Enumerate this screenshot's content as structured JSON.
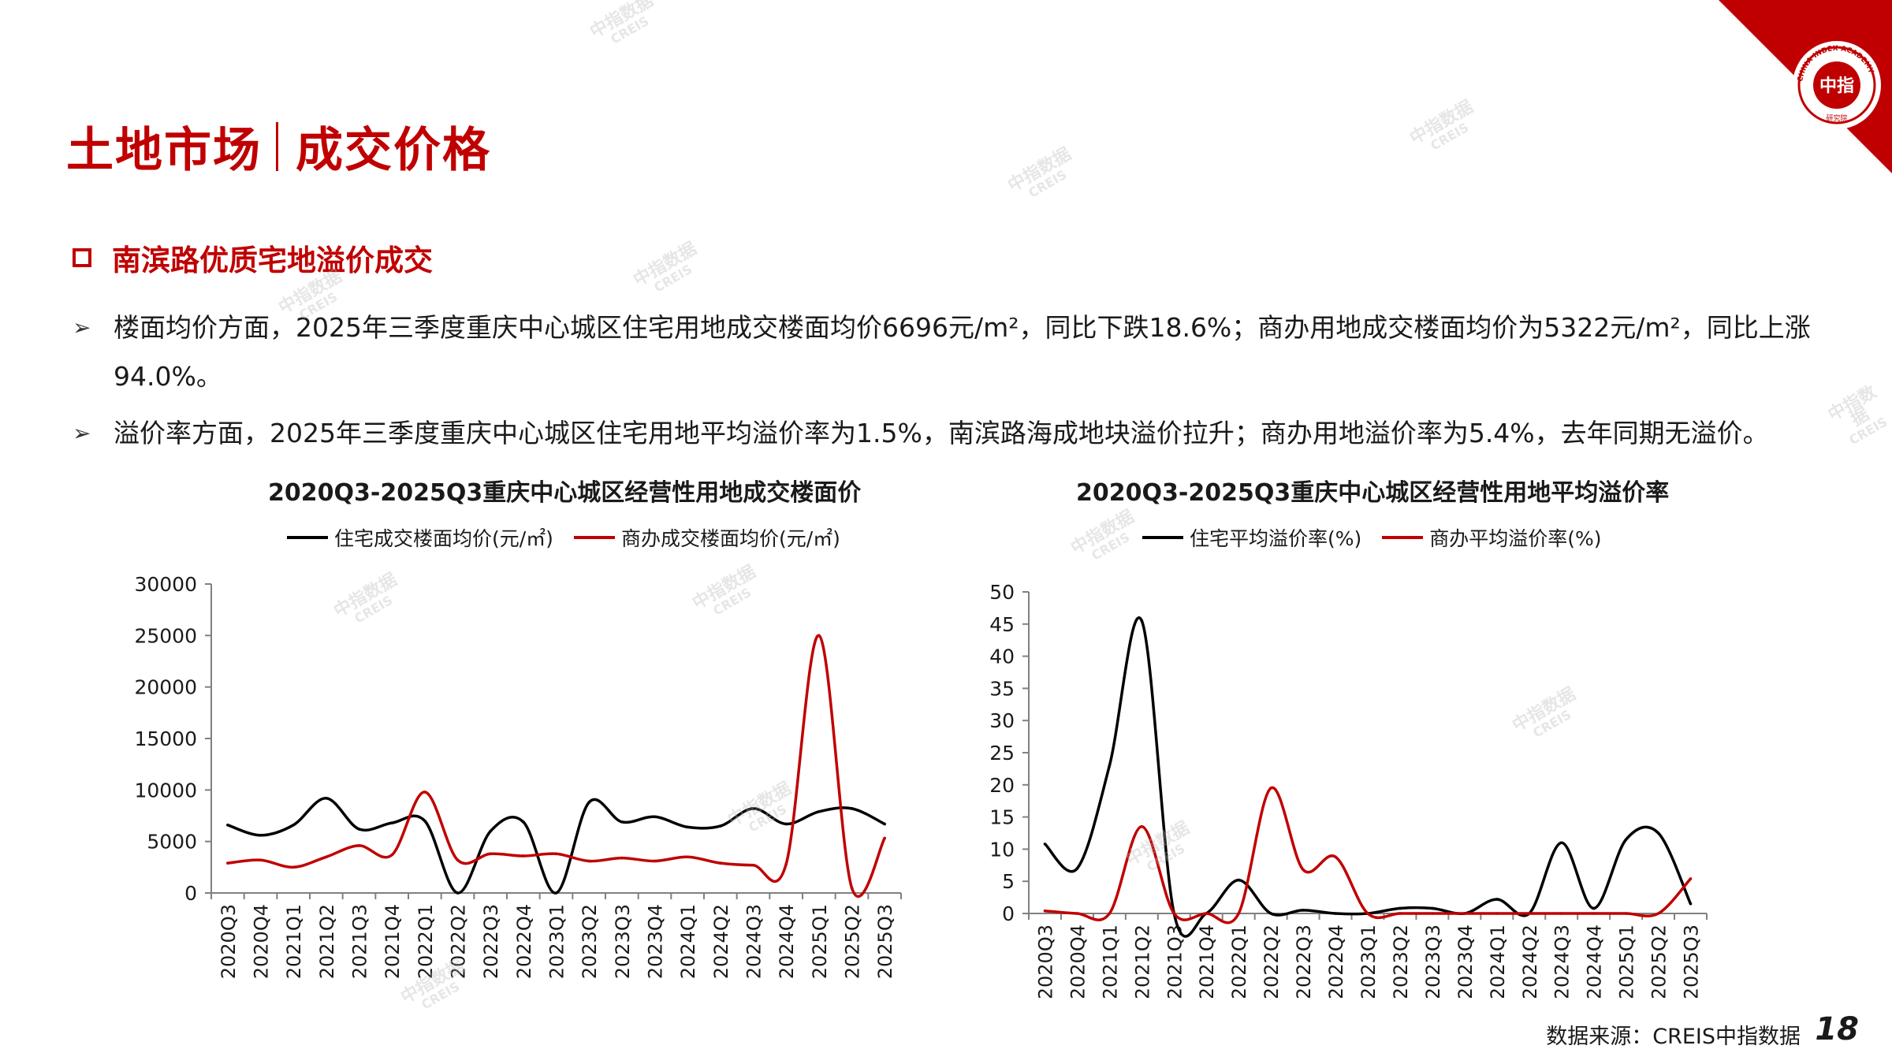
{
  "header": {
    "title_main": "土地市场",
    "title_sub": "成交价格",
    "logo": {
      "text": "中指",
      "ring_text": "CHINA INDEX ACADEMY",
      "bottom_text": "研究院",
      "bg_color": "#c00000"
    }
  },
  "section": {
    "heading": "南滨路优质宅地溢价成交"
  },
  "bullets": [
    {
      "arrow": "➢",
      "text": "楼面均价方面，2025年三季度重庆中心城区住宅用地成交楼面均价6696元/m²，同比下跌18.6%；商办用地成交楼面均价为5322元/m²，同比上涨94.0%。"
    },
    {
      "arrow": "➢",
      "text": "溢价率方面，2025年三季度重庆中心城区住宅用地平均溢价率为1.5%，南滨路海成地块溢价拉升；商办用地溢价率为5.4%，去年同期无溢价。"
    }
  ],
  "watermark": {
    "line1": "中指数据",
    "line2": "CREIS"
  },
  "colors": {
    "accent": "#c00000",
    "series_black": "#000000",
    "series_red": "#c00000"
  },
  "chart_data": [
    {
      "type": "line",
      "title": "2020Q3-2025Q3重庆中心城区经营性用地成交楼面价",
      "xlabel": "",
      "ylabel": "",
      "categories": [
        "2020Q3",
        "2020Q4",
        "2021Q1",
        "2021Q2",
        "2021Q3",
        "2021Q4",
        "2022Q1",
        "2022Q2",
        "2022Q3",
        "2022Q4",
        "2023Q1",
        "2023Q2",
        "2023Q3",
        "2023Q4",
        "2024Q1",
        "2024Q2",
        "2024Q3",
        "2024Q4",
        "2025Q1",
        "2025Q2",
        "2025Q3"
      ],
      "ylim": [
        0,
        30000
      ],
      "yticks": [
        0,
        5000,
        10000,
        15000,
        20000,
        25000,
        30000
      ],
      "legend_position": "top",
      "grid": false,
      "series": [
        {
          "name": "住宅成交楼面均价(元/㎡)",
          "color": "#000000",
          "values": [
            6600,
            5600,
            6600,
            9200,
            6200,
            6800,
            7000,
            0,
            6000,
            6900,
            0,
            8800,
            6900,
            7400,
            6400,
            6500,
            8200,
            6700,
            7900,
            8200,
            6696
          ]
        },
        {
          "name": "商办成交楼面均价(元/㎡)",
          "color": "#c00000",
          "values": [
            2900,
            3200,
            2500,
            3500,
            4600,
            3700,
            9800,
            3200,
            3800,
            3600,
            3800,
            3100,
            3400,
            3100,
            3500,
            2900,
            2700,
            2800,
            25000,
            500,
            5322
          ]
        }
      ]
    },
    {
      "type": "line",
      "title": "2020Q3-2025Q3重庆中心城区经营性用地平均溢价率",
      "xlabel": "",
      "ylabel": "",
      "categories": [
        "2020Q3",
        "2020Q4",
        "2021Q1",
        "2021Q2",
        "2021Q3",
        "2021Q4",
        "2022Q1",
        "2022Q2",
        "2022Q3",
        "2022Q4",
        "2023Q1",
        "2023Q2",
        "2023Q3",
        "2023Q4",
        "2024Q1",
        "2024Q2",
        "2024Q3",
        "2024Q4",
        "2025Q1",
        "2025Q2",
        "2025Q3"
      ],
      "ylim": [
        0,
        50
      ],
      "yticks": [
        0,
        5,
        10,
        15,
        20,
        25,
        30,
        35,
        40,
        45,
        50
      ],
      "legend_position": "top",
      "grid": false,
      "series": [
        {
          "name": "住宅平均溢价率(%)",
          "color": "#000000",
          "values": [
            10.8,
            7.0,
            23.0,
            45.5,
            0,
            0,
            5.2,
            0,
            0.5,
            0,
            0,
            0.8,
            0.8,
            0,
            2.2,
            0,
            11.0,
            0.8,
            11.5,
            12.5,
            1.5
          ]
        },
        {
          "name": "商办平均溢价率(%)",
          "color": "#c00000",
          "values": [
            0.4,
            0,
            0,
            13.5,
            0,
            0,
            0,
            19.5,
            6.8,
            8.8,
            0,
            0,
            0,
            0,
            0,
            0,
            0,
            0,
            0,
            0,
            5.4
          ]
        }
      ]
    }
  ],
  "footer": {
    "source": "数据来源：CREIS中指数据",
    "page_number": "18"
  }
}
